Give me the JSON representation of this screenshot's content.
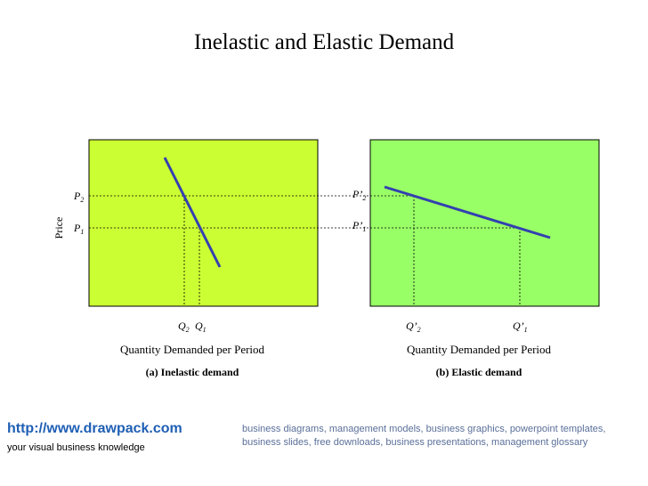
{
  "title": "Inelastic and Elastic Demand",
  "colors": {
    "panel_a_fill": "#ccff33",
    "panel_b_fill": "#99ff66",
    "demand_line": "#3340b0",
    "footer_link": "#1f5fb4",
    "footer_desc": "#5a6f99"
  },
  "axis_label_y": "Price",
  "panel_a": {
    "price_labels": [
      "P",
      "P"
    ],
    "price_subs": [
      "2",
      "1"
    ],
    "qty_labels": [
      "Q",
      "Q"
    ],
    "qty_subs": [
      "2",
      "1"
    ],
    "xlabel": "Quantity Demanded per Period",
    "caption": "(a) Inelastic demand"
  },
  "panel_b": {
    "price_labels": [
      "P’",
      "P’"
    ],
    "price_subs": [
      "2",
      "1"
    ],
    "qty_labels": [
      "Q’",
      "Q’"
    ],
    "qty_subs": [
      "2",
      "1"
    ],
    "xlabel": "Quantity Demanded per Period",
    "caption": "(b) Elastic demand"
  },
  "footer": {
    "url": "http://www.drawpack.com",
    "tagline": "your visual business knowledge",
    "description": "business diagrams, management models, business graphics, powerpoint templates, business slides, free downloads, business presentations, management glossary"
  }
}
